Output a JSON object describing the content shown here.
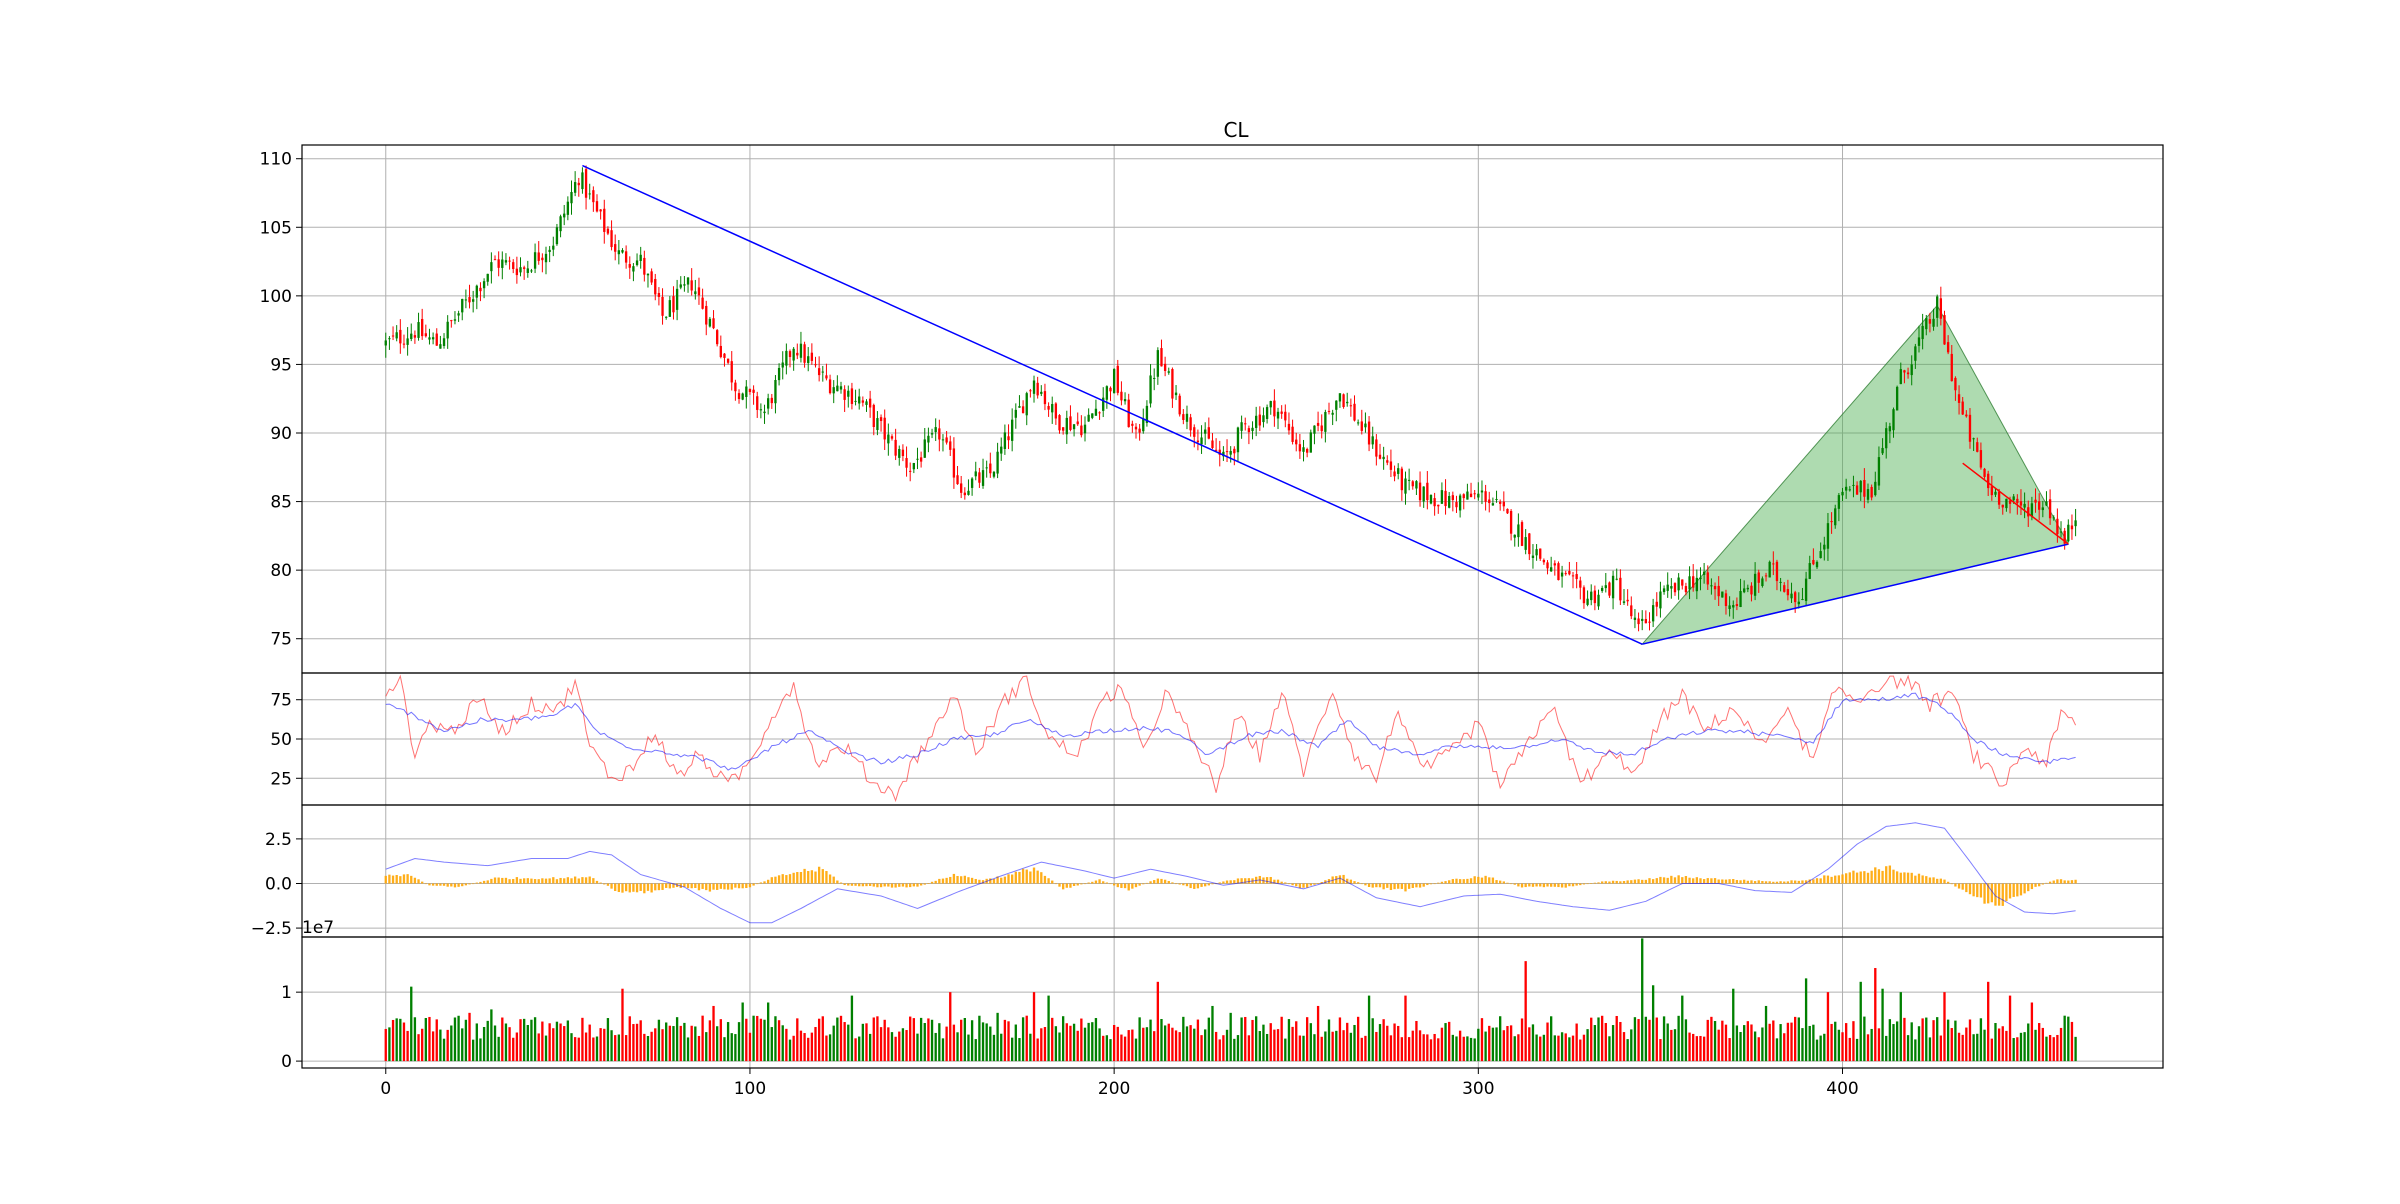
{
  "chart_data": {
    "type": "candlestick",
    "title": "CL",
    "x_ticks": [
      0,
      100,
      200,
      300,
      400
    ],
    "x_range": [
      -23,
      488
    ],
    "bar_count": 465,
    "colors": {
      "up": "#008000",
      "down": "#ff0000",
      "trend": "#0000ff",
      "zone_fill": "#4caf50",
      "zone_edge": "#2e7d32",
      "macd_hist": "#ffa500",
      "macd_line": "#0000ff",
      "rsi_fast": "#ff0000",
      "rsi_slow": "#0000ff",
      "grid": "#b0b0b0"
    },
    "price_panel": {
      "ylim": [
        72.5,
        111
      ],
      "y_ticks": [
        75,
        80,
        85,
        90,
        95,
        100,
        105,
        110
      ],
      "anchors": [
        [
          0,
          96.5
        ],
        [
          8,
          97.5
        ],
        [
          14,
          96.5
        ],
        [
          22,
          99.5
        ],
        [
          30,
          102.5
        ],
        [
          38,
          102
        ],
        [
          46,
          104
        ],
        [
          53,
          108.8
        ],
        [
          58,
          106
        ],
        [
          64,
          103
        ],
        [
          70,
          102.5
        ],
        [
          76,
          98.5
        ],
        [
          84,
          101
        ],
        [
          90,
          97.5
        ],
        [
          96,
          93.5
        ],
        [
          104,
          91.5
        ],
        [
          112,
          96.5
        ],
        [
          120,
          94
        ],
        [
          130,
          92.5
        ],
        [
          138,
          89.5
        ],
        [
          144,
          87.5
        ],
        [
          152,
          90
        ],
        [
          158,
          86
        ],
        [
          166,
          87
        ],
        [
          172,
          90.5
        ],
        [
          178,
          94
        ],
        [
          184,
          91
        ],
        [
          192,
          90.5
        ],
        [
          200,
          94
        ],
        [
          206,
          89.5
        ],
        [
          212,
          95.5
        ],
        [
          220,
          91
        ],
        [
          230,
          88
        ],
        [
          236,
          90.5
        ],
        [
          244,
          92
        ],
        [
          252,
          88.5
        ],
        [
          262,
          93
        ],
        [
          270,
          89.5
        ],
        [
          280,
          86
        ],
        [
          292,
          85
        ],
        [
          302,
          85.5
        ],
        [
          312,
          82.5
        ],
        [
          320,
          80
        ],
        [
          330,
          78
        ],
        [
          338,
          79
        ],
        [
          344,
          75.5
        ],
        [
          350,
          78
        ],
        [
          360,
          79.5
        ],
        [
          370,
          77.5
        ],
        [
          380,
          80
        ],
        [
          388,
          78
        ],
        [
          400,
          85.5
        ],
        [
          408,
          86
        ],
        [
          416,
          94
        ],
        [
          426,
          99.2
        ],
        [
          432,
          92
        ],
        [
          440,
          86
        ],
        [
          448,
          84.5
        ],
        [
          456,
          85
        ],
        [
          461,
          82
        ],
        [
          464,
          84
        ]
      ],
      "trend_line_1": {
        "x1": 54,
        "y1": 109.5,
        "x2": 345,
        "y2": 74.6
      },
      "trend_line_2": {
        "x1": 345,
        "y1": 74.6,
        "x2": 462,
        "y2": 81.9
      },
      "red_line": {
        "x1": 433,
        "y1": 87.8,
        "x2": 462,
        "y2": 81.9
      },
      "pattern_zone": [
        [
          345,
          74.6
        ],
        [
          426,
          99.3
        ],
        [
          462,
          81.9
        ]
      ]
    },
    "rsi_panel": {
      "ylim": [
        8,
        92
      ],
      "y_ticks": [
        25,
        50,
        75
      ],
      "fast_anchors": [
        [
          0,
          82
        ],
        [
          4,
          88
        ],
        [
          8,
          40
        ],
        [
          12,
          60
        ],
        [
          18,
          55
        ],
        [
          26,
          75
        ],
        [
          32,
          55
        ],
        [
          40,
          72
        ],
        [
          48,
          70
        ],
        [
          52,
          88
        ],
        [
          56,
          45
        ],
        [
          62,
          25
        ],
        [
          68,
          32
        ],
        [
          74,
          55
        ],
        [
          80,
          25
        ],
        [
          86,
          40
        ],
        [
          94,
          20
        ],
        [
          100,
          35
        ],
        [
          106,
          65
        ],
        [
          112,
          85
        ],
        [
          118,
          35
        ],
        [
          126,
          45
        ],
        [
          134,
          22
        ],
        [
          140,
          15
        ],
        [
          146,
          40
        ],
        [
          152,
          60
        ],
        [
          156,
          80
        ],
        [
          162,
          40
        ],
        [
          170,
          75
        ],
        [
          176,
          88
        ],
        [
          182,
          50
        ],
        [
          190,
          40
        ],
        [
          196,
          70
        ],
        [
          202,
          85
        ],
        [
          208,
          40
        ],
        [
          214,
          80
        ],
        [
          220,
          55
        ],
        [
          228,
          20
        ],
        [
          234,
          65
        ],
        [
          240,
          40
        ],
        [
          246,
          80
        ],
        [
          252,
          30
        ],
        [
          260,
          82
        ],
        [
          266,
          40
        ],
        [
          272,
          25
        ],
        [
          278,
          70
        ],
        [
          284,
          30
        ],
        [
          292,
          40
        ],
        [
          300,
          60
        ],
        [
          306,
          20
        ],
        [
          312,
          40
        ],
        [
          320,
          72
        ],
        [
          328,
          22
        ],
        [
          336,
          40
        ],
        [
          344,
          30
        ],
        [
          350,
          62
        ],
        [
          356,
          78
        ],
        [
          362,
          55
        ],
        [
          370,
          70
        ],
        [
          378,
          45
        ],
        [
          384,
          70
        ],
        [
          392,
          35
        ],
        [
          398,
          82
        ],
        [
          404,
          75
        ],
        [
          410,
          85
        ],
        [
          418,
          88
        ],
        [
          424,
          72
        ],
        [
          430,
          80
        ],
        [
          436,
          40
        ],
        [
          444,
          20
        ],
        [
          450,
          45
        ],
        [
          456,
          35
        ],
        [
          460,
          65
        ],
        [
          465,
          58
        ]
      ],
      "slow_anchors": [
        [
          0,
          72
        ],
        [
          8,
          65
        ],
        [
          16,
          55
        ],
        [
          26,
          62
        ],
        [
          36,
          62
        ],
        [
          46,
          65
        ],
        [
          52,
          72
        ],
        [
          58,
          55
        ],
        [
          66,
          45
        ],
        [
          76,
          42
        ],
        [
          86,
          38
        ],
        [
          96,
          30
        ],
        [
          106,
          45
        ],
        [
          116,
          55
        ],
        [
          126,
          42
        ],
        [
          136,
          35
        ],
        [
          146,
          40
        ],
        [
          156,
          50
        ],
        [
          166,
          52
        ],
        [
          176,
          62
        ],
        [
          186,
          52
        ],
        [
          196,
          55
        ],
        [
          206,
          57
        ],
        [
          216,
          55
        ],
        [
          226,
          40
        ],
        [
          236,
          52
        ],
        [
          246,
          55
        ],
        [
          256,
          45
        ],
        [
          264,
          62
        ],
        [
          272,
          45
        ],
        [
          282,
          40
        ],
        [
          292,
          45
        ],
        [
          302,
          45
        ],
        [
          312,
          45
        ],
        [
          322,
          50
        ],
        [
          332,
          42
        ],
        [
          342,
          40
        ],
        [
          352,
          50
        ],
        [
          362,
          55
        ],
        [
          372,
          55
        ],
        [
          382,
          52
        ],
        [
          392,
          48
        ],
        [
          400,
          75
        ],
        [
          410,
          75
        ],
        [
          420,
          78
        ],
        [
          428,
          70
        ],
        [
          436,
          50
        ],
        [
          446,
          38
        ],
        [
          456,
          35
        ],
        [
          465,
          40
        ]
      ]
    },
    "macd_panel": {
      "ylim": [
        -3,
        4.4
      ],
      "y_ticks": [
        -2.5,
        0.0,
        2.5
      ],
      "line_anchors": [
        [
          0,
          0.8
        ],
        [
          8,
          1.4
        ],
        [
          16,
          1.2
        ],
        [
          28,
          1.0
        ],
        [
          40,
          1.4
        ],
        [
          50,
          1.4
        ],
        [
          56,
          1.8
        ],
        [
          62,
          1.6
        ],
        [
          70,
          0.5
        ],
        [
          82,
          -0.2
        ],
        [
          92,
          -1.4
        ],
        [
          100,
          -2.2
        ],
        [
          106,
          -2.2
        ],
        [
          114,
          -1.4
        ],
        [
          124,
          -0.3
        ],
        [
          136,
          -0.7
        ],
        [
          146,
          -1.4
        ],
        [
          158,
          -0.4
        ],
        [
          170,
          0.5
        ],
        [
          180,
          1.2
        ],
        [
          192,
          0.7
        ],
        [
          200,
          0.3
        ],
        [
          210,
          0.8
        ],
        [
          220,
          0.4
        ],
        [
          230,
          -0.1
        ],
        [
          240,
          0.2
        ],
        [
          252,
          -0.3
        ],
        [
          262,
          0.3
        ],
        [
          272,
          -0.8
        ],
        [
          284,
          -1.3
        ],
        [
          296,
          -0.7
        ],
        [
          306,
          -0.6
        ],
        [
          316,
          -1.0
        ],
        [
          326,
          -1.3
        ],
        [
          336,
          -1.5
        ],
        [
          346,
          -1.0
        ],
        [
          356,
          0.0
        ],
        [
          366,
          0.0
        ],
        [
          376,
          -0.4
        ],
        [
          386,
          -0.5
        ],
        [
          396,
          0.8
        ],
        [
          404,
          2.2
        ],
        [
          412,
          3.2
        ],
        [
          420,
          3.4
        ],
        [
          428,
          3.1
        ],
        [
          434,
          1.5
        ],
        [
          442,
          -0.7
        ],
        [
          450,
          -1.6
        ],
        [
          458,
          -1.7
        ],
        [
          465,
          -1.5
        ]
      ],
      "hist_anchors": [
        [
          0,
          0.4
        ],
        [
          6,
          0.5
        ],
        [
          12,
          -0.1
        ],
        [
          20,
          -0.2
        ],
        [
          30,
          0.3
        ],
        [
          40,
          0.3
        ],
        [
          50,
          0.3
        ],
        [
          56,
          0.4
        ],
        [
          64,
          -0.5
        ],
        [
          72,
          -0.5
        ],
        [
          80,
          -0.2
        ],
        [
          90,
          -0.4
        ],
        [
          100,
          -0.2
        ],
        [
          106,
          0.3
        ],
        [
          114,
          0.7
        ],
        [
          120,
          0.8
        ],
        [
          126,
          -0.1
        ],
        [
          136,
          -0.2
        ],
        [
          146,
          -0.2
        ],
        [
          156,
          0.5
        ],
        [
          164,
          0.2
        ],
        [
          172,
          0.5
        ],
        [
          178,
          0.9
        ],
        [
          186,
          -0.3
        ],
        [
          196,
          0.2
        ],
        [
          204,
          -0.4
        ],
        [
          212,
          0.3
        ],
        [
          222,
          -0.3
        ],
        [
          232,
          0.2
        ],
        [
          242,
          0.4
        ],
        [
          252,
          -0.3
        ],
        [
          262,
          0.5
        ],
        [
          270,
          -0.2
        ],
        [
          280,
          -0.4
        ],
        [
          292,
          0.2
        ],
        [
          302,
          0.4
        ],
        [
          312,
          -0.2
        ],
        [
          324,
          -0.2
        ],
        [
          334,
          0.1
        ],
        [
          344,
          0.2
        ],
        [
          354,
          0.4
        ],
        [
          362,
          0.3
        ],
        [
          372,
          0.2
        ],
        [
          382,
          0.1
        ],
        [
          390,
          0.2
        ],
        [
          398,
          0.5
        ],
        [
          406,
          0.7
        ],
        [
          412,
          0.9
        ],
        [
          420,
          0.5
        ],
        [
          428,
          0.2
        ],
        [
          434,
          -0.5
        ],
        [
          440,
          -1.2
        ],
        [
          446,
          -1.0
        ],
        [
          452,
          -0.3
        ],
        [
          458,
          0.2
        ],
        [
          465,
          0.2
        ]
      ]
    },
    "volume_panel": {
      "ylim": [
        -0.1,
        1.8
      ],
      "y_ticks": [
        0,
        1
      ],
      "exponent_label": "1e7",
      "base_volume": 0.45,
      "spikes": [
        [
          3,
          0.62
        ],
        [
          7,
          1.08
        ],
        [
          23,
          0.7
        ],
        [
          29,
          0.75
        ],
        [
          40,
          0.6
        ],
        [
          65,
          1.05
        ],
        [
          75,
          0.6
        ],
        [
          90,
          0.8
        ],
        [
          98,
          0.85
        ],
        [
          105,
          0.85
        ],
        [
          113,
          0.62
        ],
        [
          120,
          0.65
        ],
        [
          128,
          0.95
        ],
        [
          155,
          1.0
        ],
        [
          168,
          0.7
        ],
        [
          178,
          1.0
        ],
        [
          182,
          0.95
        ],
        [
          212,
          1.15
        ],
        [
          227,
          0.8
        ],
        [
          232,
          0.7
        ],
        [
          256,
          0.8
        ],
        [
          270,
          0.95
        ],
        [
          280,
          0.95
        ],
        [
          313,
          1.45
        ],
        [
          320,
          0.65
        ],
        [
          345,
          1.78
        ],
        [
          348,
          1.1
        ],
        [
          356,
          0.95
        ],
        [
          370,
          1.05
        ],
        [
          379,
          0.8
        ],
        [
          390,
          1.2
        ],
        [
          396,
          1.0
        ],
        [
          405,
          1.15
        ],
        [
          409,
          1.35
        ],
        [
          411,
          1.05
        ],
        [
          416,
          1.0
        ],
        [
          428,
          1.0
        ],
        [
          440,
          1.15
        ],
        [
          446,
          0.95
        ],
        [
          452,
          0.85
        ]
      ]
    }
  }
}
